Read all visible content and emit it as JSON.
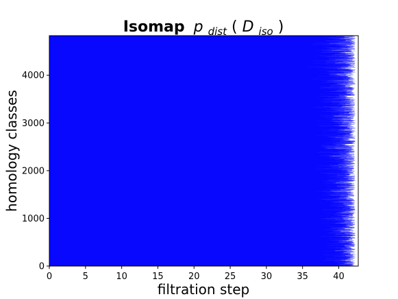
{
  "chart_data": {
    "type": "barcode",
    "title": {
      "bold": "Isomap",
      "func": "p",
      "func_sub": "dist",
      "arg": "D",
      "arg_sub": "iso"
    },
    "xlabel": "filtration step",
    "ylabel": "homology classes",
    "xlim": [
      0,
      42.7
    ],
    "ylim": [
      0,
      4830
    ],
    "xticks": [
      0,
      5,
      10,
      15,
      20,
      25,
      30,
      35,
      40
    ],
    "yticks": [
      0,
      1000,
      2000,
      3000,
      4000
    ],
    "grid": false,
    "bar_color": "#0000ff",
    "intervals": {
      "birth": 0,
      "death_profile": {
        "class_index": [
          0,
          200,
          500,
          800,
          1200,
          1600,
          2000,
          2400,
          2800,
          3200,
          3600,
          4000,
          4400,
          4830
        ],
        "death_lower_envelope": [
          37.1,
          36.95,
          36.8,
          36.7,
          36.55,
          36.45,
          36.3,
          36.2,
          36.05,
          35.95,
          35.8,
          35.6,
          35.4,
          35.2
        ]
      },
      "max_death": 42.3
    }
  }
}
